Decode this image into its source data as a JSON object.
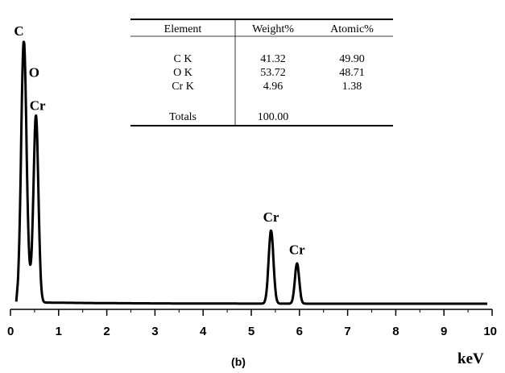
{
  "chart_data": {
    "type": "line",
    "xlabel": "keV",
    "subtitle": "(b)",
    "xlim": [
      0,
      10
    ],
    "x_ticks": [
      "0",
      "1",
      "2",
      "3",
      "4",
      "5",
      "6",
      "7",
      "8",
      "9",
      "10"
    ],
    "grid": false,
    "peaks": [
      {
        "label": "C",
        "x": 0.277,
        "y": 1.0
      },
      {
        "label": "O",
        "x": 0.39,
        "y": 0.85
      },
      {
        "label": "Cr",
        "x": 0.53,
        "y": 0.707
      },
      {
        "label": "Cr",
        "x": 5.41,
        "y": 0.286
      },
      {
        "label": "Cr",
        "x": 5.95,
        "y": 0.162
      }
    ],
    "table": {
      "columns": [
        "Element",
        "Weight%",
        "Atomic%"
      ],
      "rows": [
        [
          "C K",
          "41.32",
          "49.90"
        ],
        [
          "O K",
          "53.72",
          "48.71"
        ],
        [
          "Cr K",
          "4.96",
          "1.38"
        ]
      ],
      "totals_label": "Totals",
      "totals_weight": "100.00"
    }
  }
}
